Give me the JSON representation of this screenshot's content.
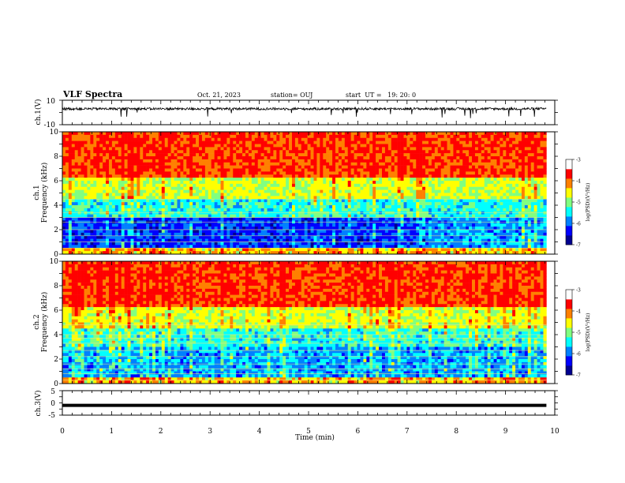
{
  "header": {
    "title": "VLF Spectra",
    "date": "Oct. 21, 2023",
    "station": "station= OUJ",
    "start": "start  UT =   19: 20: 0"
  },
  "colors": {
    "spectrum_scale": [
      "#000090",
      "#0000ff",
      "#0080ff",
      "#00ffff",
      "#80ff80",
      "#ffff00",
      "#ff8000",
      "#ff0000",
      "#ffffff"
    ],
    "waveform": "#000000"
  },
  "chart_data": [
    {
      "type": "line",
      "panel": "ch1-waveform",
      "ylabel": "ch.1(V)",
      "ylim": [
        -10,
        10
      ],
      "yticks": [
        "10",
        "-10"
      ],
      "x_range": [
        0,
        9.83
      ],
      "baseline_value": 3,
      "noise_amplitude": 1
    },
    {
      "type": "heatmap",
      "panel": "ch1-spectrum",
      "ylabel": "ch.1\nFrequency (kHz)",
      "ylim": [
        0,
        10
      ],
      "yticks": [
        "0",
        "2",
        "4",
        "6",
        "8",
        "10"
      ],
      "x_range": [
        0,
        9.83
      ],
      "colorbar": {
        "label": "log(PSD)(V²/Hz)",
        "range": [
          -7,
          -3
        ],
        "ticks": [
          "-3",
          "-4",
          "-5",
          "-6",
          "-7"
        ]
      }
    },
    {
      "type": "heatmap",
      "panel": "ch2-spectrum",
      "ylabel": "ch.2\nFrequency (kHz)",
      "ylim": [
        0,
        10
      ],
      "yticks": [
        "0",
        "2",
        "4",
        "6",
        "8",
        "10"
      ],
      "x_range": [
        0,
        9.83
      ],
      "colorbar": {
        "label": "log(PSD)(V²/Hz)",
        "range": [
          -7,
          -3
        ],
        "ticks": [
          "-3",
          "-4",
          "-5",
          "-6",
          "-7"
        ]
      }
    },
    {
      "type": "line",
      "panel": "ch3-waveform",
      "ylabel": "ch.3(V)",
      "ylim": [
        -5,
        5
      ],
      "yticks": [
        "5",
        "0",
        "-5"
      ],
      "x_range": [
        0,
        9.83
      ],
      "baseline_value": -1
    }
  ],
  "xaxis": {
    "label": "Time (min)",
    "ticks": [
      "0",
      "1",
      "2",
      "3",
      "4",
      "5",
      "6",
      "7",
      "8",
      "9",
      "10"
    ],
    "range": [
      0,
      10
    ]
  }
}
